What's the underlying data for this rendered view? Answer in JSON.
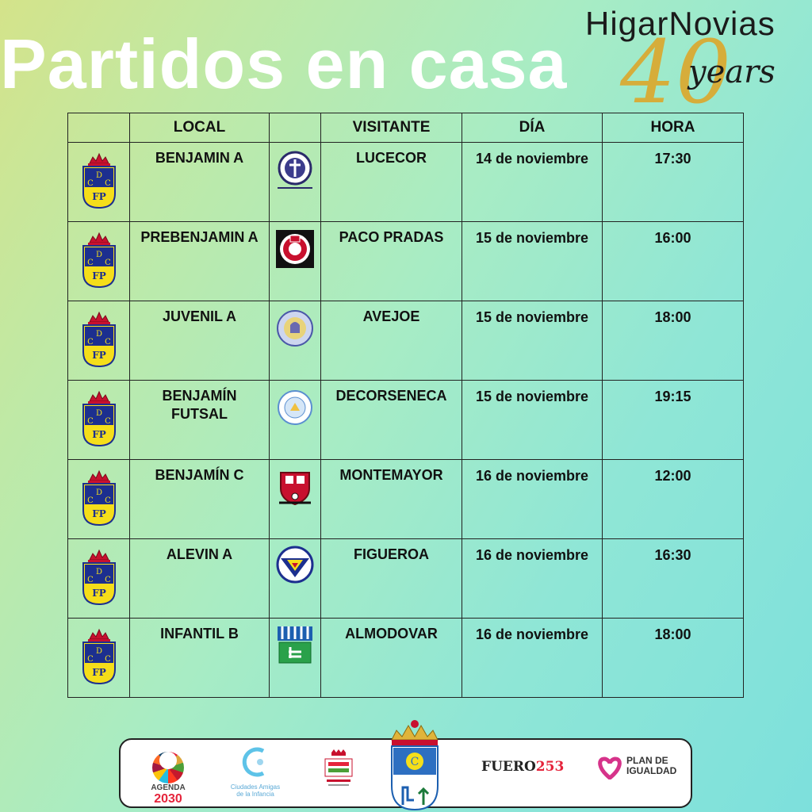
{
  "header": {
    "title": "Partidos en casa",
    "brand": {
      "name": "HigarNovias",
      "number": "40",
      "word": "years"
    }
  },
  "table": {
    "columns": [
      "",
      "LOCAL",
      "",
      "VISITANTE",
      "DÍA",
      "HORA"
    ],
    "rows": [
      {
        "local": "BENJAMIN A",
        "visitor": "LUCECOR",
        "day": "14 de noviembre",
        "time": "17:30",
        "visitor_icon": "lucecor-crest-icon"
      },
      {
        "local": "PREBENJAMIN A",
        "visitor": "PACO PRADAS",
        "day": "15 de noviembre",
        "time": "16:00",
        "visitor_icon": "paco-pradas-crest-icon"
      },
      {
        "local": "JUVENIL A",
        "visitor": "AVEJOE",
        "day": "15 de noviembre",
        "time": "18:00",
        "visitor_icon": "avejoe-crest-icon"
      },
      {
        "local": "BENJAMÍN FUTSAL",
        "visitor": "DECORSENECA",
        "day": "15 de noviembre",
        "time": "19:15",
        "visitor_icon": "decorseneca-crest-icon"
      },
      {
        "local": "BENJAMÍN C",
        "visitor": "MONTEMAYOR",
        "day": "16 de noviembre",
        "time": "12:00",
        "visitor_icon": "montemayor-crest-icon"
      },
      {
        "local": "ALEVIN A",
        "visitor": "FIGUEROA",
        "day": "16 de noviembre",
        "time": "16:30",
        "visitor_icon": "figueroa-crest-icon"
      },
      {
        "local": "INFANTIL B",
        "visitor": "ALMODOVAR",
        "day": "16 de noviembre",
        "time": "18:00",
        "visitor_icon": "almodovar-crest-icon"
      }
    ],
    "home_crest": {
      "icon": "cdfp-crest-icon",
      "letters_top": "D",
      "letters_mid": "C",
      "letters_right": "C",
      "letters_bottom": "FP"
    }
  },
  "sponsors": {
    "agenda": {
      "line1": "AGENDA",
      "line2": "2030"
    },
    "ciudades": "Ciudades Amigas de la Infancia",
    "fuero": "FUERO",
    "fuero_num": "253",
    "plan": {
      "line1": "PLAN DE",
      "line2": "IGUALDAD"
    }
  },
  "colors": {
    "crest_blue": "#1c2f8f",
    "crest_yellow": "#f5de1a",
    "crown_red": "#c8102e",
    "title": "#ffffff",
    "gold": "#d6ad3a"
  }
}
